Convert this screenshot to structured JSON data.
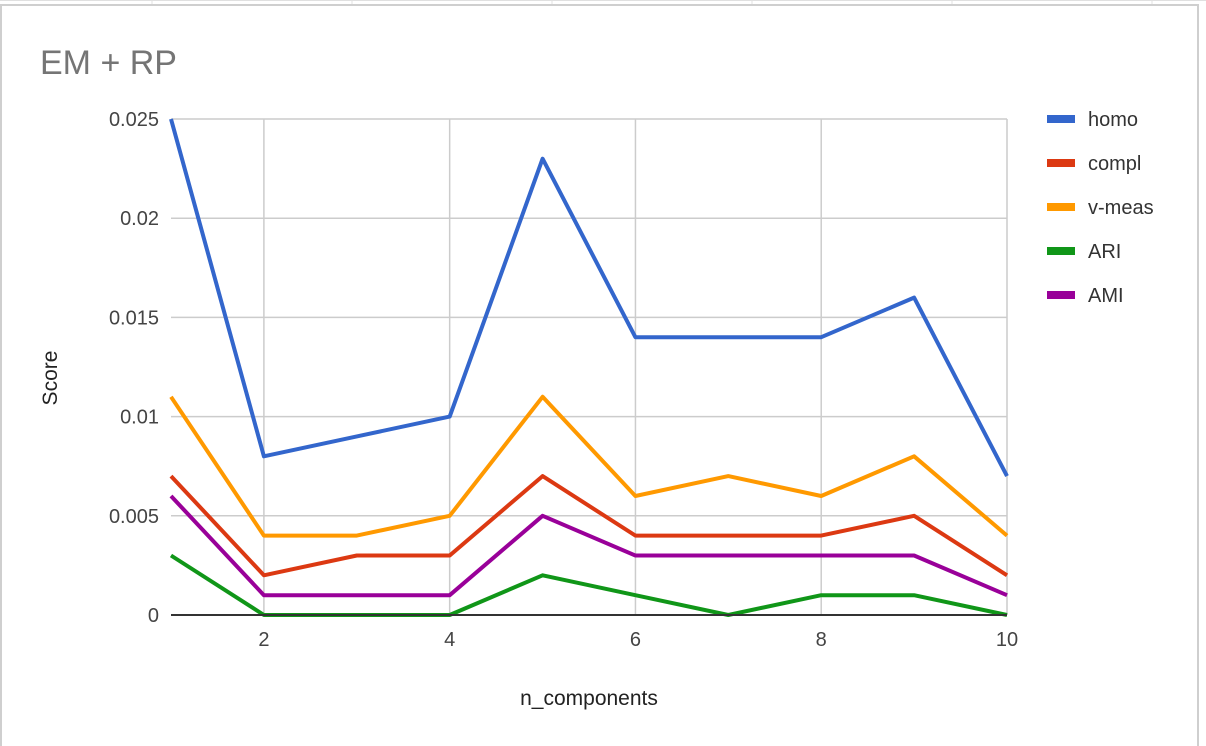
{
  "chart_data": {
    "type": "line",
    "title": "EM + RP",
    "xlabel": "n_components",
    "ylabel": "Score",
    "x": [
      1,
      2,
      3,
      4,
      5,
      6,
      7,
      8,
      9,
      10
    ],
    "xlim": [
      1,
      10
    ],
    "ylim": [
      0,
      0.025
    ],
    "x_ticks": [
      2,
      4,
      6,
      8,
      10
    ],
    "y_ticks": [
      0,
      0.005,
      0.01,
      0.015,
      0.02,
      0.025
    ],
    "x_tick_labels": [
      "2",
      "4",
      "6",
      "8",
      "10"
    ],
    "y_tick_labels": [
      "0",
      "0.005",
      "0.01",
      "0.015",
      "0.02",
      "0.025"
    ],
    "grid": true,
    "legend_position": "right",
    "series": [
      {
        "name": "homo",
        "color": "#3366cc",
        "values": [
          0.025,
          0.008,
          0.009,
          0.01,
          0.023,
          0.014,
          0.014,
          0.014,
          0.016,
          0.007
        ]
      },
      {
        "name": "compl",
        "color": "#dc3912",
        "values": [
          0.007,
          0.002,
          0.003,
          0.003,
          0.007,
          0.004,
          0.004,
          0.004,
          0.005,
          0.002
        ]
      },
      {
        "name": "v-meas",
        "color": "#ff9900",
        "values": [
          0.011,
          0.004,
          0.004,
          0.005,
          0.011,
          0.006,
          0.007,
          0.006,
          0.008,
          0.004
        ]
      },
      {
        "name": "ARI",
        "color": "#109618",
        "values": [
          0.003,
          0.0,
          0.0,
          0.0,
          0.002,
          0.001,
          0.0,
          0.001,
          0.001,
          0.0
        ]
      },
      {
        "name": "AMI",
        "color": "#990099",
        "values": [
          0.006,
          0.001,
          0.001,
          0.001,
          0.005,
          0.003,
          0.003,
          0.003,
          0.003,
          0.001
        ]
      }
    ]
  }
}
